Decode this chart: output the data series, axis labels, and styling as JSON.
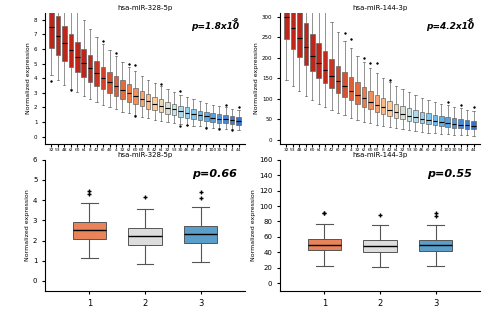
{
  "title_top_left": "hsa-miR-328-5p",
  "title_top_right": "hsa-miR-144-3p",
  "title_bot_left": "hsa-miR-328-5p",
  "title_bot_right": "hsa-miR-144-3p",
  "pval_bot_left": "p=0.66",
  "pval_bot_right": "p=0.55",
  "ylabel": "Normalized expression",
  "individual_labels": [
    "32",
    "53",
    "48",
    "t2",
    "60",
    "t4",
    "8",
    "42",
    "t0",
    "40",
    "4",
    "32",
    "t2",
    "60",
    "60",
    "8",
    "42",
    "t4",
    "32",
    "53",
    "30",
    "46",
    "t0",
    "40",
    "4",
    "100",
    "30",
    "54",
    "4",
    "44"
  ],
  "tp_colors": [
    "#E8835A",
    "#DDDDDD",
    "#5B9EC9"
  ]
}
